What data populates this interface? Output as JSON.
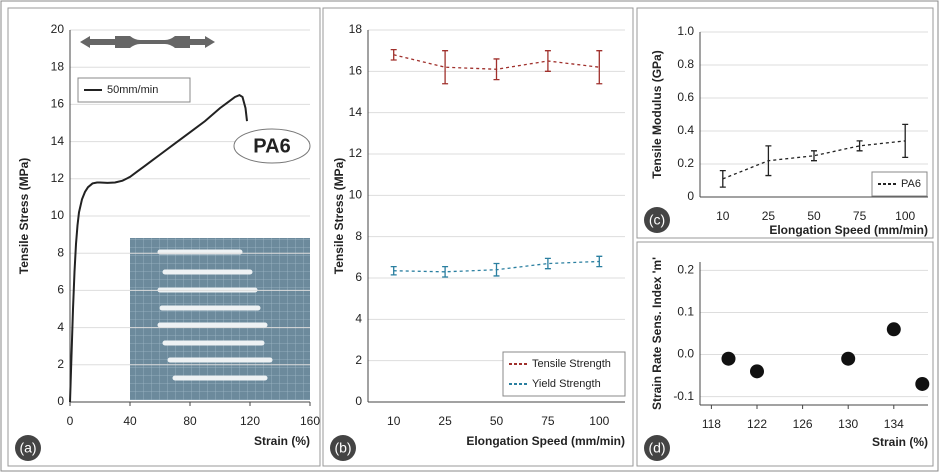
{
  "chart_data": [
    {
      "type": "line",
      "panel_label": "(a)",
      "ylabel": "Tensile Stress (MPa)",
      "xlabel": "Strain (%)",
      "annotation": "PA6",
      "x": [
        0,
        1,
        2,
        3,
        4,
        5,
        6,
        8,
        10,
        12,
        15,
        18,
        20,
        25,
        30,
        35,
        40,
        45,
        50,
        55,
        60,
        70,
        80,
        90,
        100,
        105,
        110,
        113,
        115,
        117,
        118
      ],
      "series": [
        {
          "name": "50mm/min",
          "color": "#222222",
          "values": [
            0,
            2.5,
            5,
            7,
            8.5,
            9.5,
            10.2,
            10.9,
            11.3,
            11.55,
            11.75,
            11.8,
            11.8,
            11.78,
            11.8,
            11.9,
            12.1,
            12.4,
            12.7,
            13.0,
            13.3,
            13.9,
            14.5,
            15.1,
            15.8,
            16.1,
            16.4,
            16.5,
            16.4,
            15.8,
            15.1
          ]
        }
      ],
      "xlim": [
        0,
        160
      ],
      "xticks": [
        0,
        40,
        80,
        120,
        160
      ],
      "ylim": [
        0,
        20
      ],
      "yticks": [
        0,
        2,
        4,
        6,
        8,
        10,
        12,
        14,
        16,
        18,
        20
      ],
      "grid": true,
      "legend": "upper left"
    },
    {
      "type": "line",
      "panel_label": "(b)",
      "ylabel": "Tensile Stress (MPa)",
      "xlabel": "Elongation Speed (mm/min)",
      "categories": [
        "10",
        "25",
        "50",
        "75",
        "100"
      ],
      "series": [
        {
          "name": "Tensile Strength",
          "color": "#a0302c",
          "values": [
            16.8,
            16.2,
            16.1,
            16.5,
            16.2
          ],
          "errors": [
            0.25,
            0.8,
            0.5,
            0.5,
            0.8
          ]
        },
        {
          "name": "Yield Strength",
          "color": "#2a7fa0",
          "values": [
            6.35,
            6.3,
            6.4,
            6.7,
            6.8
          ],
          "errors": [
            0.2,
            0.25,
            0.3,
            0.25,
            0.25
          ]
        }
      ],
      "ylim": [
        0,
        18
      ],
      "yticks": [
        0,
        2,
        4,
        6,
        8,
        10,
        12,
        14,
        16,
        18
      ],
      "grid": true,
      "legend": "lower right"
    },
    {
      "type": "line",
      "panel_label": "(c)",
      "ylabel": "Tensile Modulus (GPa)",
      "xlabel": "Elongation Speed (mm/min)",
      "categories": [
        "10",
        "25",
        "50",
        "75",
        "100"
      ],
      "series": [
        {
          "name": "PA6",
          "color": "#222222",
          "values": [
            0.11,
            0.22,
            0.25,
            0.31,
            0.34
          ],
          "errors": [
            0.05,
            0.09,
            0.03,
            0.03,
            0.1
          ]
        }
      ],
      "ylim": [
        0,
        1
      ],
      "yticks": [
        0,
        0.2,
        0.4,
        0.6,
        0.8,
        {
          "value": 1,
          "label": "1.0"
        }
      ],
      "grid": true,
      "legend": "lower right"
    },
    {
      "type": "scatter",
      "panel_label": "(d)",
      "ylabel": "Strain Rate Sens. Index 'm'",
      "xlabel": "Strain (%)",
      "x": [
        119.5,
        122,
        130,
        134,
        136.5
      ],
      "values": [
        -0.01,
        -0.04,
        -0.01,
        0.06,
        -0.07
      ],
      "color": "#111111",
      "xlim": [
        117,
        137
      ],
      "xticks": [
        118,
        122,
        126,
        130,
        134
      ],
      "ylim": [
        -0.12,
        0.22
      ],
      "yticks": [
        -0.1,
        {
          "value": 0,
          "label": "0.0"
        },
        0.1,
        0.2
      ],
      "grid": true
    }
  ]
}
